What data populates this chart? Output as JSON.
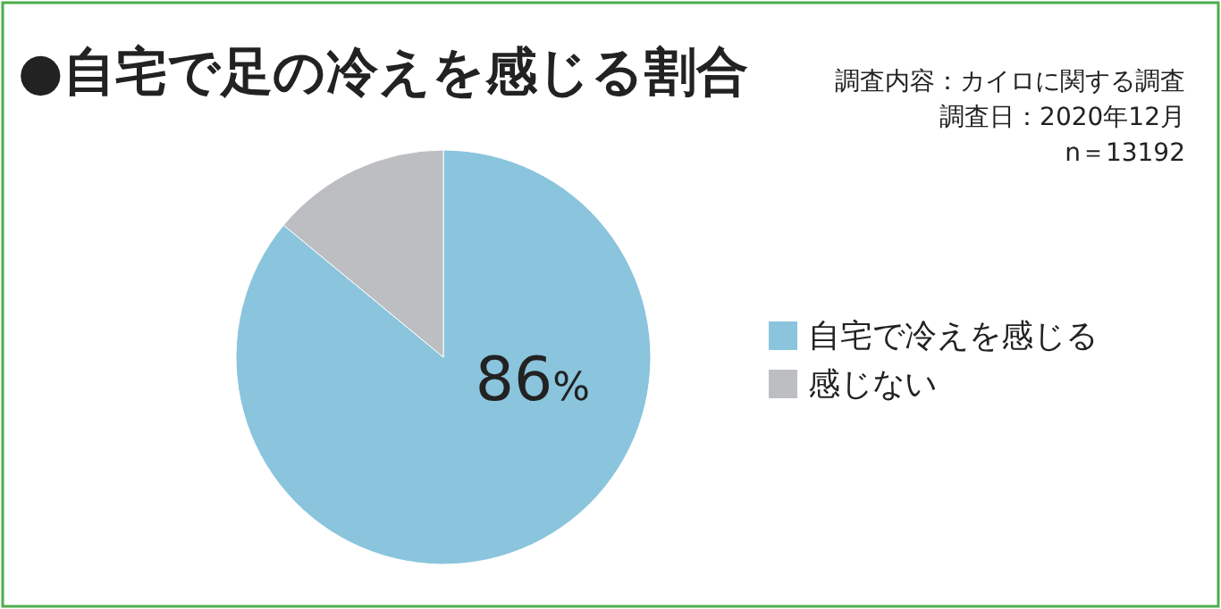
{
  "chart_data": {
    "type": "pie",
    "title": "●自宅で足の冷えを感じる割合",
    "annotations": [
      "調査内容：カイロに関する調査",
      "調査日：2020年12月",
      "n＝13192"
    ],
    "categories": [
      "自宅で冷えを感じる",
      "感じない"
    ],
    "values": [
      86,
      14
    ],
    "colors": [
      "#8ac4dd",
      "#bdbec2"
    ],
    "value_labels": [
      "86%",
      null
    ],
    "legend": "right"
  }
}
